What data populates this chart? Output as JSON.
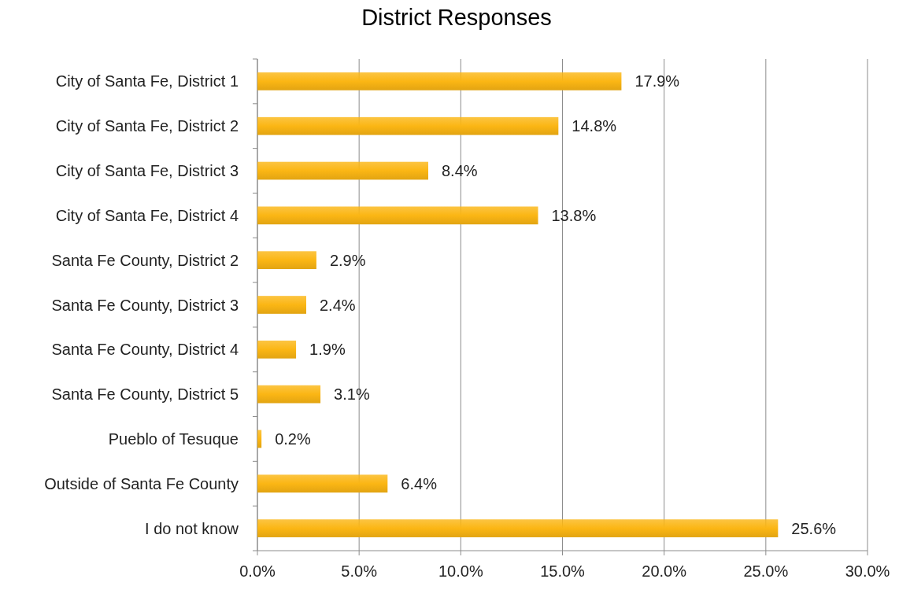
{
  "chart_data": {
    "type": "bar",
    "orientation": "horizontal",
    "title": "District Responses",
    "categories": [
      "City of Santa Fe, District 1",
      "City of Santa Fe, District 2",
      "City of Santa Fe, District 3",
      "City of Santa Fe, District 4",
      "Santa Fe County, District 2",
      "Santa Fe County, District 3",
      "Santa Fe County, District 4",
      "Santa Fe County, District 5",
      "Pueblo of Tesuque",
      "Outside of Santa Fe County",
      "I do not know"
    ],
    "values": [
      17.9,
      14.8,
      8.4,
      13.8,
      2.9,
      2.4,
      1.9,
      3.1,
      0.2,
      6.4,
      25.6
    ],
    "value_labels": [
      "17.9%",
      "14.8%",
      "8.4%",
      "13.8%",
      "2.9%",
      "2.4%",
      "1.9%",
      "3.1%",
      "0.2%",
      "6.4%",
      "25.6%"
    ],
    "color": "#fbb614",
    "xlim": [
      0,
      30
    ],
    "xticks": [
      {
        "value": 0,
        "label": "0.0%"
      },
      {
        "value": 5,
        "label": "5.0%"
      },
      {
        "value": 10,
        "label": "10.0%"
      },
      {
        "value": 15,
        "label": "15.0%"
      },
      {
        "value": 20,
        "label": "20.0%"
      },
      {
        "value": 25,
        "label": "25.0%"
      },
      {
        "value": 30,
        "label": "30.0%"
      }
    ],
    "grid": "x"
  }
}
